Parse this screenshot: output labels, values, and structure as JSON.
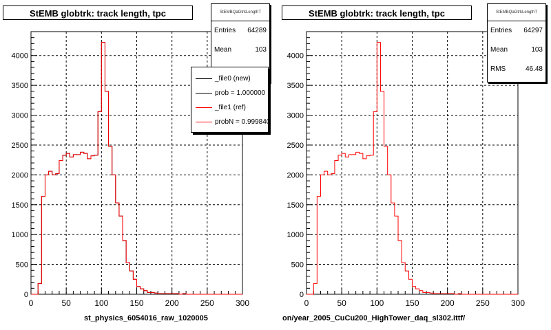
{
  "chart_data": [
    {
      "type": "histogram",
      "title": "StEMB globtrk: track length, tpc",
      "xlabel": "st_physics_6054016_raw_1020005",
      "xlim": [
        0,
        300
      ],
      "ylim": [
        0,
        4400
      ],
      "xticks": [
        "0",
        "50",
        "100",
        "150",
        "200",
        "250",
        "300"
      ],
      "yticks": [
        "0",
        "500",
        "1000",
        "1500",
        "2000",
        "2500",
        "3000",
        "3500",
        "4000"
      ],
      "grid": true,
      "bin_edges_start": 0,
      "bin_width": 5,
      "series": [
        {
          "color": "#000000",
          "values": [
            0,
            0,
            180,
            1640,
            2000,
            2060,
            2000,
            2020,
            2240,
            2330,
            2360,
            2300,
            2340,
            2340,
            2380,
            2360,
            2270,
            2320,
            2330,
            3060,
            4220,
            3400,
            2480,
            2000,
            1530,
            1310,
            900,
            530,
            390,
            250,
            130,
            90,
            60,
            30,
            30,
            20,
            10,
            10,
            10,
            10,
            10,
            10,
            0,
            10,
            0,
            0,
            0,
            0,
            0,
            0,
            0,
            0,
            0,
            0,
            0,
            0,
            0,
            0,
            0,
            0
          ]
        },
        {
          "color": "#ff0000",
          "values": [
            0,
            0,
            180,
            1640,
            2000,
            2060,
            2000,
            2020,
            2240,
            2330,
            2360,
            2300,
            2340,
            2340,
            2380,
            2360,
            2270,
            2320,
            2330,
            3060,
            4220,
            3400,
            2480,
            2000,
            1530,
            1310,
            900,
            530,
            390,
            250,
            130,
            90,
            60,
            30,
            30,
            20,
            10,
            10,
            10,
            10,
            10,
            10,
            0,
            10,
            0,
            0,
            0,
            0,
            0,
            0,
            0,
            0,
            0,
            0,
            0,
            0,
            0,
            0,
            0,
            0
          ]
        }
      ],
      "stats": {
        "header": "StEMBQaGtrkLengthT",
        "rows": [
          {
            "key": "Entries",
            "value": "64289"
          },
          {
            "key": "Mean",
            "value": "103"
          }
        ]
      },
      "legend": [
        {
          "label": "_file0 (new)",
          "color": "#000000"
        },
        {
          "label": "prob = 1.000000",
          "color": "#000000"
        },
        {
          "label": "_file1 (ref)",
          "color": "#ff0000"
        },
        {
          "label": "probN = 0.999840",
          "color": "#ff0000"
        }
      ]
    },
    {
      "type": "histogram",
      "title": "StEMB globtrk: track length, tpc",
      "xlabel": "on/year_2005_CuCu200_HighTower_daq_sl302.ittf/",
      "xlim": [
        0,
        300
      ],
      "ylim": [
        0,
        4400
      ],
      "xticks": [
        "0",
        "50",
        "100",
        "150",
        "200",
        "250",
        "300"
      ],
      "yticks": [
        "0",
        "500",
        "1000",
        "1500",
        "2000",
        "2500",
        "3000",
        "3500",
        "4000"
      ],
      "grid": true,
      "bin_edges_start": 0,
      "bin_width": 5,
      "series": [
        {
          "color": "#ff0000",
          "values": [
            0,
            0,
            180,
            1640,
            2000,
            2060,
            2000,
            2020,
            2240,
            2330,
            2360,
            2300,
            2340,
            2340,
            2380,
            2360,
            2270,
            2320,
            2330,
            3060,
            4220,
            3400,
            2480,
            2000,
            1530,
            1310,
            900,
            530,
            390,
            250,
            130,
            90,
            60,
            30,
            30,
            20,
            10,
            10,
            10,
            10,
            10,
            10,
            0,
            10,
            0,
            0,
            0,
            0,
            0,
            0,
            0,
            0,
            0,
            0,
            0,
            0,
            0,
            0,
            0,
            0
          ]
        }
      ],
      "stats": {
        "header": "StEMBQaGtrkLengthT",
        "rows": [
          {
            "key": "Entries",
            "value": "64297"
          },
          {
            "key": "Mean",
            "value": "103"
          },
          {
            "key": "RMS",
            "value": "46.48"
          }
        ]
      }
    }
  ]
}
